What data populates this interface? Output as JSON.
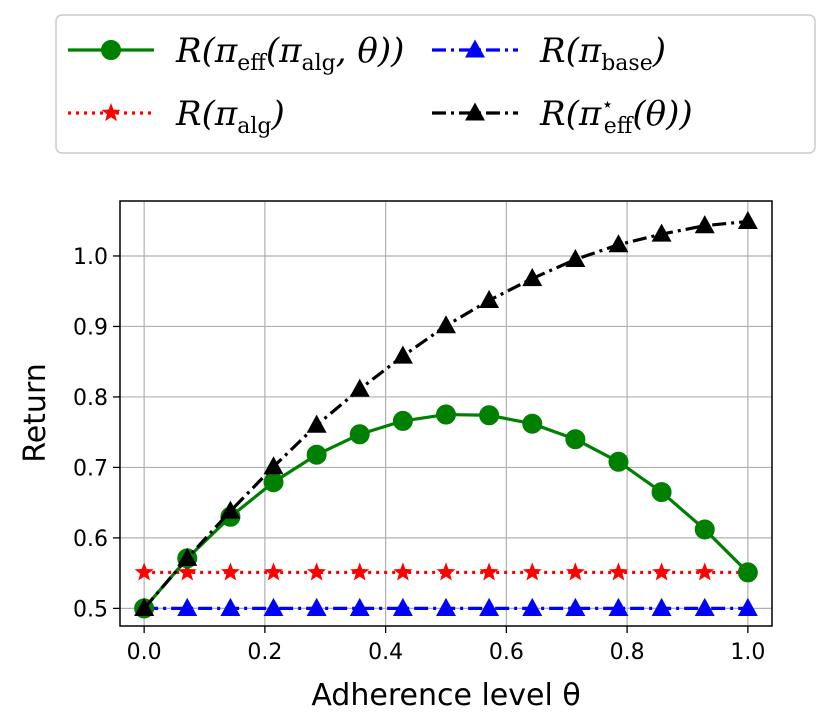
{
  "chart_data": {
    "type": "line",
    "xlabel": "Adherence level θ",
    "ylabel": "Return",
    "xlim": [
      -0.04,
      1.04
    ],
    "ylim": [
      0.475,
      1.078
    ],
    "xticks": [
      0.0,
      0.2,
      0.4,
      0.6,
      0.8,
      1.0
    ],
    "xtick_labels": [
      "0.0",
      "0.2",
      "0.4",
      "0.6",
      "0.8",
      "1.0"
    ],
    "yticks": [
      0.5,
      0.6,
      0.7,
      0.8,
      0.9,
      1.0
    ],
    "ytick_labels": [
      "0.5",
      "0.6",
      "0.7",
      "0.8",
      "0.9",
      "1.0"
    ],
    "grid": true,
    "legend_placement": "top (above plot), 2 columns",
    "x": [
      0.0,
      0.0714,
      0.1429,
      0.2143,
      0.2857,
      0.3571,
      0.4286,
      0.5,
      0.5714,
      0.6429,
      0.7143,
      0.7857,
      0.8571,
      0.9286,
      1.0
    ],
    "series": [
      {
        "name": "R(π_eff(π_alg, θ))",
        "legend_main": "R(π",
        "legend_sub": "eff",
        "legend_tail": "(π",
        "legend_sub2": "alg",
        "legend_end": ", θ))",
        "color": "#008000",
        "linestyle": "solid",
        "marker": "circle",
        "values": [
          0.5,
          0.571,
          0.63,
          0.679,
          0.718,
          0.747,
          0.766,
          0.775,
          0.774,
          0.762,
          0.74,
          0.708,
          0.665,
          0.612,
          0.551
        ]
      },
      {
        "name": "R(π_alg)",
        "legend_main": "R(π",
        "legend_sub": "alg",
        "legend_end": ")",
        "color": "#ff0000",
        "linestyle": "dotted",
        "marker": "star",
        "values": [
          0.551,
          0.551,
          0.551,
          0.551,
          0.551,
          0.551,
          0.551,
          0.551,
          0.551,
          0.551,
          0.551,
          0.551,
          0.551,
          0.551,
          0.551
        ]
      },
      {
        "name": "R(π_base)",
        "legend_main": "R(π",
        "legend_sub": "base",
        "legend_end": ")",
        "color": "#0000ff",
        "linestyle": "dashdot",
        "marker": "triangle",
        "values": [
          0.5,
          0.5,
          0.5,
          0.5,
          0.5,
          0.5,
          0.5,
          0.5,
          0.5,
          0.5,
          0.5,
          0.5,
          0.5,
          0.5,
          0.5
        ]
      },
      {
        "name": "R(π*_eff(θ))",
        "legend_main": "R(π",
        "legend_sup": "⋆",
        "legend_sub": "eff",
        "legend_end": "(θ))",
        "color": "#000000",
        "linestyle": "dashdot",
        "marker": "triangle",
        "values": [
          0.5,
          0.571,
          0.638,
          0.701,
          0.76,
          0.811,
          0.858,
          0.901,
          0.937,
          0.968,
          0.995,
          1.016,
          1.031,
          1.043,
          1.049
        ]
      }
    ]
  }
}
